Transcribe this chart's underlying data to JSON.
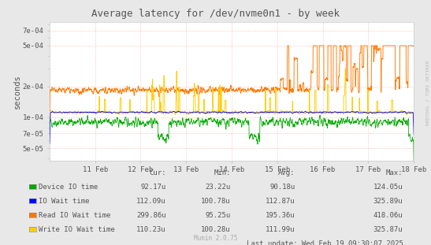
{
  "title": "Average latency for /dev/nvme0n1 - by week",
  "ylabel": "seconds",
  "background_color": "#e8e8e8",
  "plot_bg_color": "#ffffff",
  "grid_color": "#ffb0b0",
  "yticks": [
    5e-05,
    7e-05,
    0.0001,
    0.0002,
    0.0005,
    0.0007
  ],
  "ytick_labels": [
    "5e-05",
    "7e-05",
    "1e-04",
    "2e-04",
    "5e-04",
    "7e-04"
  ],
  "ylim_min": 3.8e-05,
  "ylim_max": 0.00085,
  "xtick_labels": [
    "11 Feb",
    "12 Feb",
    "13 Feb",
    "14 Feb",
    "15 Feb",
    "16 Feb",
    "17 Feb",
    "18 Feb"
  ],
  "series_colors": [
    "#00aa00",
    "#0000ff",
    "#ff7700",
    "#ffcc00"
  ],
  "legend_data": [
    {
      "label": "Device IO time",
      "color": "#00aa00",
      "cur": "92.17u",
      "min": "23.22u",
      "avg": "90.18u",
      "max": "124.05u"
    },
    {
      "label": "IO Wait time",
      "color": "#0000ff",
      "cur": "112.09u",
      "min": "100.78u",
      "avg": "112.87u",
      "max": "325.89u"
    },
    {
      "label": "Read IO Wait time",
      "color": "#ff7700",
      "cur": "299.86u",
      "min": "95.25u",
      "avg": "195.36u",
      "max": "418.06u"
    },
    {
      "label": "Write IO Wait time",
      "color": "#ffcc00",
      "cur": "110.23u",
      "min": "100.28u",
      "avg": "111.99u",
      "max": "325.87u"
    }
  ],
  "footer": "Last update: Wed Feb 19 09:30:07 2025",
  "munin_version": "Munin 2.0.75",
  "watermark": "RRDTOOL / TOBI OETIKER",
  "font_color": "#555555",
  "light_color": "#aaaaaa"
}
